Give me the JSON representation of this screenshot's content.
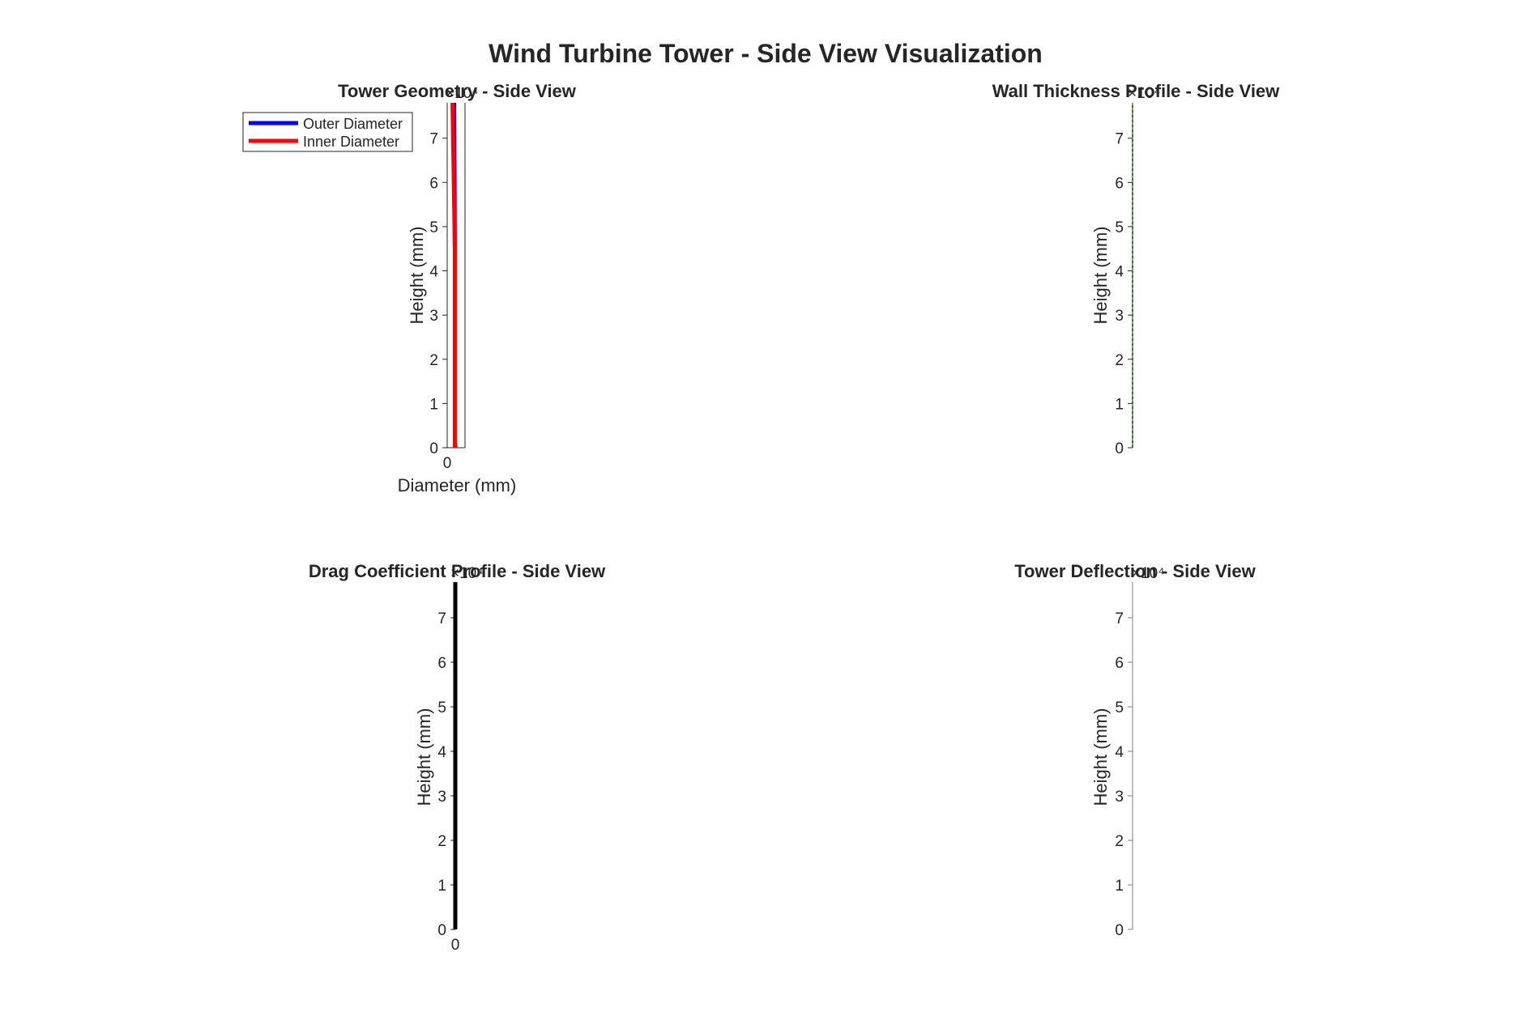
{
  "figure": {
    "title": "Wind Turbine Tower - Side View Visualization"
  },
  "chart_data": [
    {
      "id": "geometry",
      "type": "line",
      "title": "Tower Geometry - Side View",
      "xlabel": "Diameter (mm)",
      "ylabel": "Height (mm)",
      "y_exponent": "×10⁴",
      "x_ticks": [
        "0"
      ],
      "y_ticks": [
        "0",
        "1",
        "2",
        "3",
        "4",
        "5",
        "6",
        "7"
      ],
      "xlim": [
        0,
        10000
      ],
      "ylim": [
        0,
        7.8
      ],
      "legend_position": "top-left (outside)",
      "series": [
        {
          "name": "Outer Diameter",
          "color": "#0000ff",
          "x": [
            4300,
            4300,
            3900
          ],
          "y": [
            0,
            4.5,
            7.8
          ]
        },
        {
          "name": "Inner Diameter",
          "color": "#ff0000",
          "x": [
            4300,
            4300,
            3000
          ],
          "y": [
            0,
            4.5,
            7.8
          ]
        }
      ]
    },
    {
      "id": "thickness",
      "type": "line",
      "title": "Wall Thickness Profile - Side View",
      "xlabel": "",
      "ylabel": "Height (mm)",
      "y_exponent": "×10⁴",
      "x_ticks": [],
      "y_ticks": [
        "0",
        "1",
        "2",
        "3",
        "4",
        "5",
        "6",
        "7"
      ],
      "xlim": [
        0,
        1
      ],
      "ylim": [
        0,
        7.8
      ],
      "series": [
        {
          "color": "#2e7d32",
          "x": [
            0,
            0
          ],
          "y": [
            0,
            7.8
          ]
        }
      ]
    },
    {
      "id": "drag",
      "type": "line",
      "title": "Drag Coefficient Profile - Side View",
      "xlabel": "",
      "ylabel": "Height (mm)",
      "y_exponent": "×10⁴",
      "x_ticks": [
        "0"
      ],
      "y_ticks": [
        "0",
        "1",
        "2",
        "3",
        "4",
        "5",
        "6",
        "7"
      ],
      "xlim": [
        0,
        1
      ],
      "ylim": [
        0,
        7.8
      ],
      "series": [
        {
          "color": "#000000",
          "x": [
            0,
            0
          ],
          "y": [
            0,
            7.8
          ]
        }
      ]
    },
    {
      "id": "deflection",
      "type": "line",
      "title": "Tower Deflection - Side View",
      "xlabel": "",
      "ylabel": "Height (mm)",
      "y_exponent": "×10⁴",
      "x_ticks": [],
      "y_ticks": [
        "0",
        "1",
        "2",
        "3",
        "4",
        "5",
        "6",
        "7"
      ],
      "xlim": [
        0,
        1
      ],
      "ylim": [
        0,
        7.8
      ],
      "series": []
    }
  ]
}
